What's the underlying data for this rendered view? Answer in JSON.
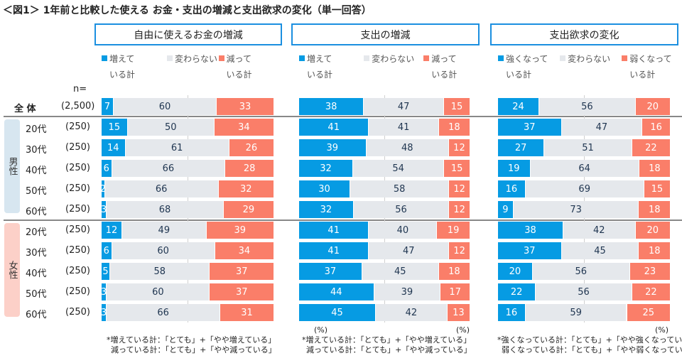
{
  "title": "＜図1＞ 1年前と比較した使える お金・支出の増減と支出欲求の変化（単一回答）",
  "n_label": "n=",
  "colors": {
    "blue": "#069be3",
    "gray": "#e5e8ec",
    "red": "#fa7e69",
    "men_bg": "#d7e6f0",
    "women_bg": "#fcd0c8"
  },
  "groups": {
    "men": "男性",
    "women": "女性"
  },
  "chart_data": {
    "type": "bar",
    "stacked": true,
    "orientation": "horizontal",
    "unit": "(%)",
    "categories": [
      {
        "label": "全 体",
        "n": "(2,500)"
      },
      {
        "label": "20代",
        "n": "(250)"
      },
      {
        "label": "30代",
        "n": "(250)"
      },
      {
        "label": "40代",
        "n": "(250)"
      },
      {
        "label": "50代",
        "n": "(250)"
      },
      {
        "label": "60代",
        "n": "(250)"
      },
      {
        "label": "20代",
        "n": "(250)"
      },
      {
        "label": "30代",
        "n": "(250)"
      },
      {
        "label": "40代",
        "n": "(250)"
      },
      {
        "label": "50代",
        "n": "(250)"
      },
      {
        "label": "60代",
        "n": "(250)"
      }
    ],
    "panels": [
      {
        "title": "自由に使えるお金の増減",
        "legend": [
          "増えて\nいる計",
          "変わらない",
          "減って\nいる計"
        ],
        "series": [
          {
            "name": "増えている計",
            "values": [
              7,
              15,
              14,
              6,
              2,
              3,
              12,
              6,
              5,
              3,
              3
            ]
          },
          {
            "name": "変わらない",
            "values": [
              60,
              50,
              61,
              66,
              66,
              68,
              49,
              60,
              58,
              60,
              66
            ]
          },
          {
            "name": "減っている計",
            "values": [
              33,
              34,
              26,
              28,
              32,
              29,
              39,
              34,
              37,
              37,
              31
            ]
          }
        ],
        "notes": [
          "*増えている計：「とても」+「やや増えている」",
          "減っている計：「とても」+「やや減っている」"
        ]
      },
      {
        "title": "支出の増減",
        "legend": [
          "増えて\nいる計",
          "変わらない",
          "減って\nいる計"
        ],
        "series": [
          {
            "name": "増えている計",
            "values": [
              38,
              41,
              39,
              32,
              30,
              32,
              41,
              41,
              37,
              44,
              45
            ]
          },
          {
            "name": "変わらない",
            "values": [
              47,
              41,
              48,
              54,
              58,
              56,
              40,
              47,
              45,
              39,
              42
            ]
          },
          {
            "name": "減っている計",
            "values": [
              15,
              18,
              12,
              15,
              12,
              12,
              19,
              12,
              18,
              17,
              13
            ]
          }
        ],
        "notes": [
          "*増えている計：「とても」+「やや増えている」",
          "減っている計：「とても」+「やや減っている」"
        ]
      },
      {
        "title": "支出欲求の変化",
        "legend": [
          "強くなって\nいる計",
          "変わらない",
          "弱くなって\nいる計"
        ],
        "series": [
          {
            "name": "強くなっている計",
            "values": [
              24,
              37,
              27,
              19,
              16,
              9,
              38,
              37,
              20,
              22,
              16
            ]
          },
          {
            "name": "変わらない",
            "values": [
              56,
              47,
              51,
              64,
              69,
              73,
              42,
              45,
              56,
              56,
              59
            ]
          },
          {
            "name": "弱くなっている計",
            "values": [
              20,
              16,
              22,
              18,
              15,
              18,
              20,
              18,
              23,
              22,
              25
            ]
          }
        ],
        "notes": [
          "*強くなっている計：「とても」+「やや強くなっている」",
          "弱くなっている計：「とても」+「やや弱くなっている」"
        ]
      }
    ]
  }
}
